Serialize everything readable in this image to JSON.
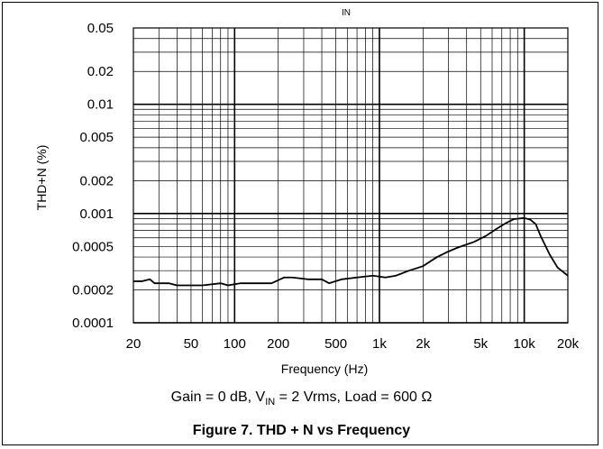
{
  "chart_data": {
    "type": "line",
    "top_note": "IN",
    "ylabel": "THD+N (%)",
    "xlabel": "Frequency (Hz)",
    "x_scale": "log",
    "y_scale": "log",
    "xlim": [
      20,
      20000
    ],
    "ylim": [
      0.0001,
      0.05
    ],
    "grid": true,
    "x_ticks": [
      {
        "value": 20,
        "label": "20"
      },
      {
        "value": 50,
        "label": "50"
      },
      {
        "value": 100,
        "label": "100"
      },
      {
        "value": 200,
        "label": "200"
      },
      {
        "value": 500,
        "label": "500"
      },
      {
        "value": 1000,
        "label": "1k"
      },
      {
        "value": 2000,
        "label": "2k"
      },
      {
        "value": 5000,
        "label": "5k"
      },
      {
        "value": 10000,
        "label": "10k"
      },
      {
        "value": 20000,
        "label": "20k"
      }
    ],
    "y_ticks": [
      {
        "value": 0.05,
        "label": "0.05"
      },
      {
        "value": 0.02,
        "label": "0.02"
      },
      {
        "value": 0.01,
        "label": "0.01"
      },
      {
        "value": 0.005,
        "label": "0.005"
      },
      {
        "value": 0.002,
        "label": "0.002"
      },
      {
        "value": 0.001,
        "label": "0.001"
      },
      {
        "value": 0.0005,
        "label": "0.0005"
      },
      {
        "value": 0.0002,
        "label": "0.0002"
      },
      {
        "value": 0.0001,
        "label": "0.0001"
      }
    ],
    "series": [
      {
        "points": [
          [
            20,
            0.00024
          ],
          [
            23,
            0.00024
          ],
          [
            26,
            0.00025
          ],
          [
            28,
            0.00023
          ],
          [
            35,
            0.00023
          ],
          [
            40,
            0.00022
          ],
          [
            60,
            0.00022
          ],
          [
            80,
            0.00023
          ],
          [
            90,
            0.00022
          ],
          [
            110,
            0.00023
          ],
          [
            180,
            0.00023
          ],
          [
            220,
            0.00026
          ],
          [
            250,
            0.00026
          ],
          [
            320,
            0.00025
          ],
          [
            400,
            0.00025
          ],
          [
            450,
            0.00023
          ],
          [
            550,
            0.00025
          ],
          [
            700,
            0.00026
          ],
          [
            900,
            0.00027
          ],
          [
            1100,
            0.00026
          ],
          [
            1300,
            0.00027
          ],
          [
            1600,
            0.0003
          ],
          [
            2000,
            0.00033
          ],
          [
            2500,
            0.0004
          ],
          [
            3000,
            0.00045
          ],
          [
            3500,
            0.00049
          ],
          [
            4500,
            0.00055
          ],
          [
            5500,
            0.00063
          ],
          [
            6500,
            0.00073
          ],
          [
            7500,
            0.00082
          ],
          [
            8500,
            0.00089
          ],
          [
            10000,
            0.00091
          ],
          [
            11000,
            0.00088
          ],
          [
            12000,
            0.0008
          ],
          [
            13000,
            0.00062
          ],
          [
            15000,
            0.00042
          ],
          [
            17000,
            0.00032
          ],
          [
            20000,
            0.00027
          ]
        ]
      }
    ]
  },
  "captions": {
    "cond_prefix": "Gain = 0 dB, V",
    "cond_sub": "IN",
    "cond_suffix": " = 2 Vrms, Load = 600 Ω",
    "figure": "Figure 7. THD + N vs Frequency"
  }
}
